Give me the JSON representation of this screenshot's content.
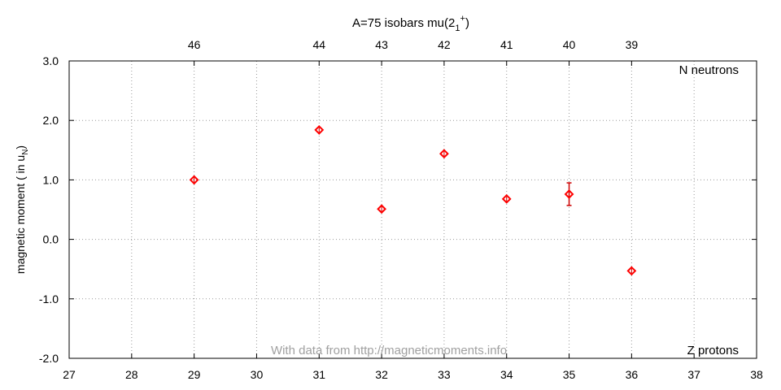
{
  "chart_data": {
    "type": "scatter",
    "title": "A=75 isobars mu(2",
    "title_sub": "1",
    "title_sup": "+",
    "title_close": ")",
    "ylabel": "magnetic moment ( in u",
    "ylabel_sub": "N",
    "ylabel_close": ")",
    "x_top_label": "N neutrons",
    "x_bottom_label": "Z protons",
    "watermark": "With data from http://magneticmoments.info",
    "xlim": [
      27,
      38
    ],
    "ylim": [
      -2.0,
      3.0
    ],
    "x_ticks": [
      27,
      28,
      29,
      30,
      31,
      32,
      33,
      34,
      35,
      36,
      37,
      38
    ],
    "y_ticks": [
      -2.0,
      -1.0,
      0.0,
      1.0,
      2.0,
      3.0
    ],
    "y_tick_labels": [
      "-2.0",
      "-1.0",
      "0.0",
      "1.0",
      "2.0",
      "3.0"
    ],
    "top_ticks": [
      {
        "z": 29,
        "label": "46"
      },
      {
        "z": 31,
        "label": "44"
      },
      {
        "z": 32,
        "label": "43"
      },
      {
        "z": 33,
        "label": "42"
      },
      {
        "z": 34,
        "label": "41"
      },
      {
        "z": 35,
        "label": "40"
      },
      {
        "z": 36,
        "label": "39"
      }
    ],
    "grid": true,
    "marker_color": "#ff0000",
    "errorbar_color": "#cc0000",
    "grid_color": "#999999",
    "points": [
      {
        "x": 29,
        "y": 1.0,
        "err": 0.02
      },
      {
        "x": 31,
        "y": 1.84,
        "err": 0.03
      },
      {
        "x": 32,
        "y": 0.51,
        "err": 0.02
      },
      {
        "x": 33,
        "y": 1.44,
        "err": 0.03
      },
      {
        "x": 34,
        "y": 0.68,
        "err": 0.02
      },
      {
        "x": 35,
        "y": 0.76,
        "err": 0.19
      },
      {
        "x": 36,
        "y": -0.53,
        "err": 0.02
      }
    ]
  }
}
